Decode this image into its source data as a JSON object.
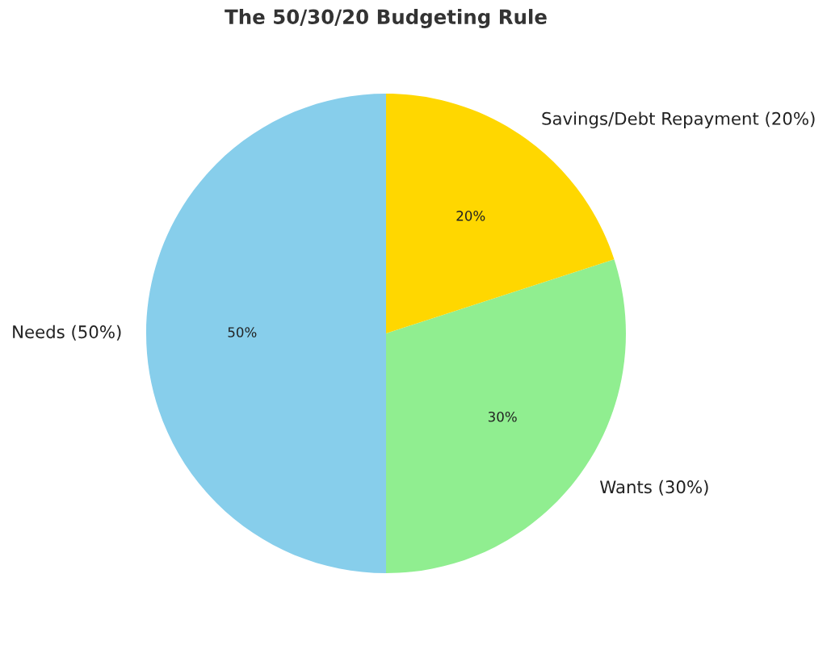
{
  "chart_data": {
    "type": "pie",
    "title": "The 50/30/20 Budgeting Rule",
    "categories": [
      "Needs (50%)",
      "Wants (30%)",
      "Savings/Debt Repayment (20%)"
    ],
    "values": [
      50,
      30,
      20
    ],
    "colors": [
      "#87ceeb",
      "#90ee90",
      "#ffd700"
    ],
    "value_labels": [
      "50%",
      "30%",
      "20%"
    ]
  }
}
